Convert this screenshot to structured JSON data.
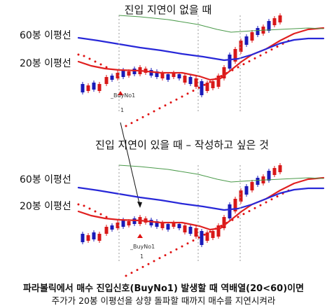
{
  "top_panel": {
    "title": "진입 지연이 없을 때",
    "ma60_label": "60봉 이평선",
    "ma20_label": "20봉 이평선",
    "signal_name": "_BuyNo1",
    "signal_count": "1"
  },
  "bottom_panel": {
    "title": "진입 지연이 있을 때 – 작성하고 싶은 것",
    "ma60_label": "60봉 이평선",
    "ma20_label": "20봉 이평선",
    "signal_name": "_BuyNo1",
    "signal_count": "1"
  },
  "caption": {
    "line1": "파라볼릭에서 매수 진입신호(BuyNo1) 발생할 때 역배열(20<60)이면",
    "line2": "주가가 20봉 이평선을 상향 돌파할 때까지 매수를 지연시켜라"
  },
  "colors": {
    "ma60": "#2828d8",
    "ma20": "#e02020",
    "long_ma": "#4a9a4a",
    "candle_up": "#d81818",
    "candle_down": "#1a1ab8",
    "parabolic_dot": "#e01010",
    "grid": "#9a9a9a",
    "signal_arrow": "#e01010"
  }
}
